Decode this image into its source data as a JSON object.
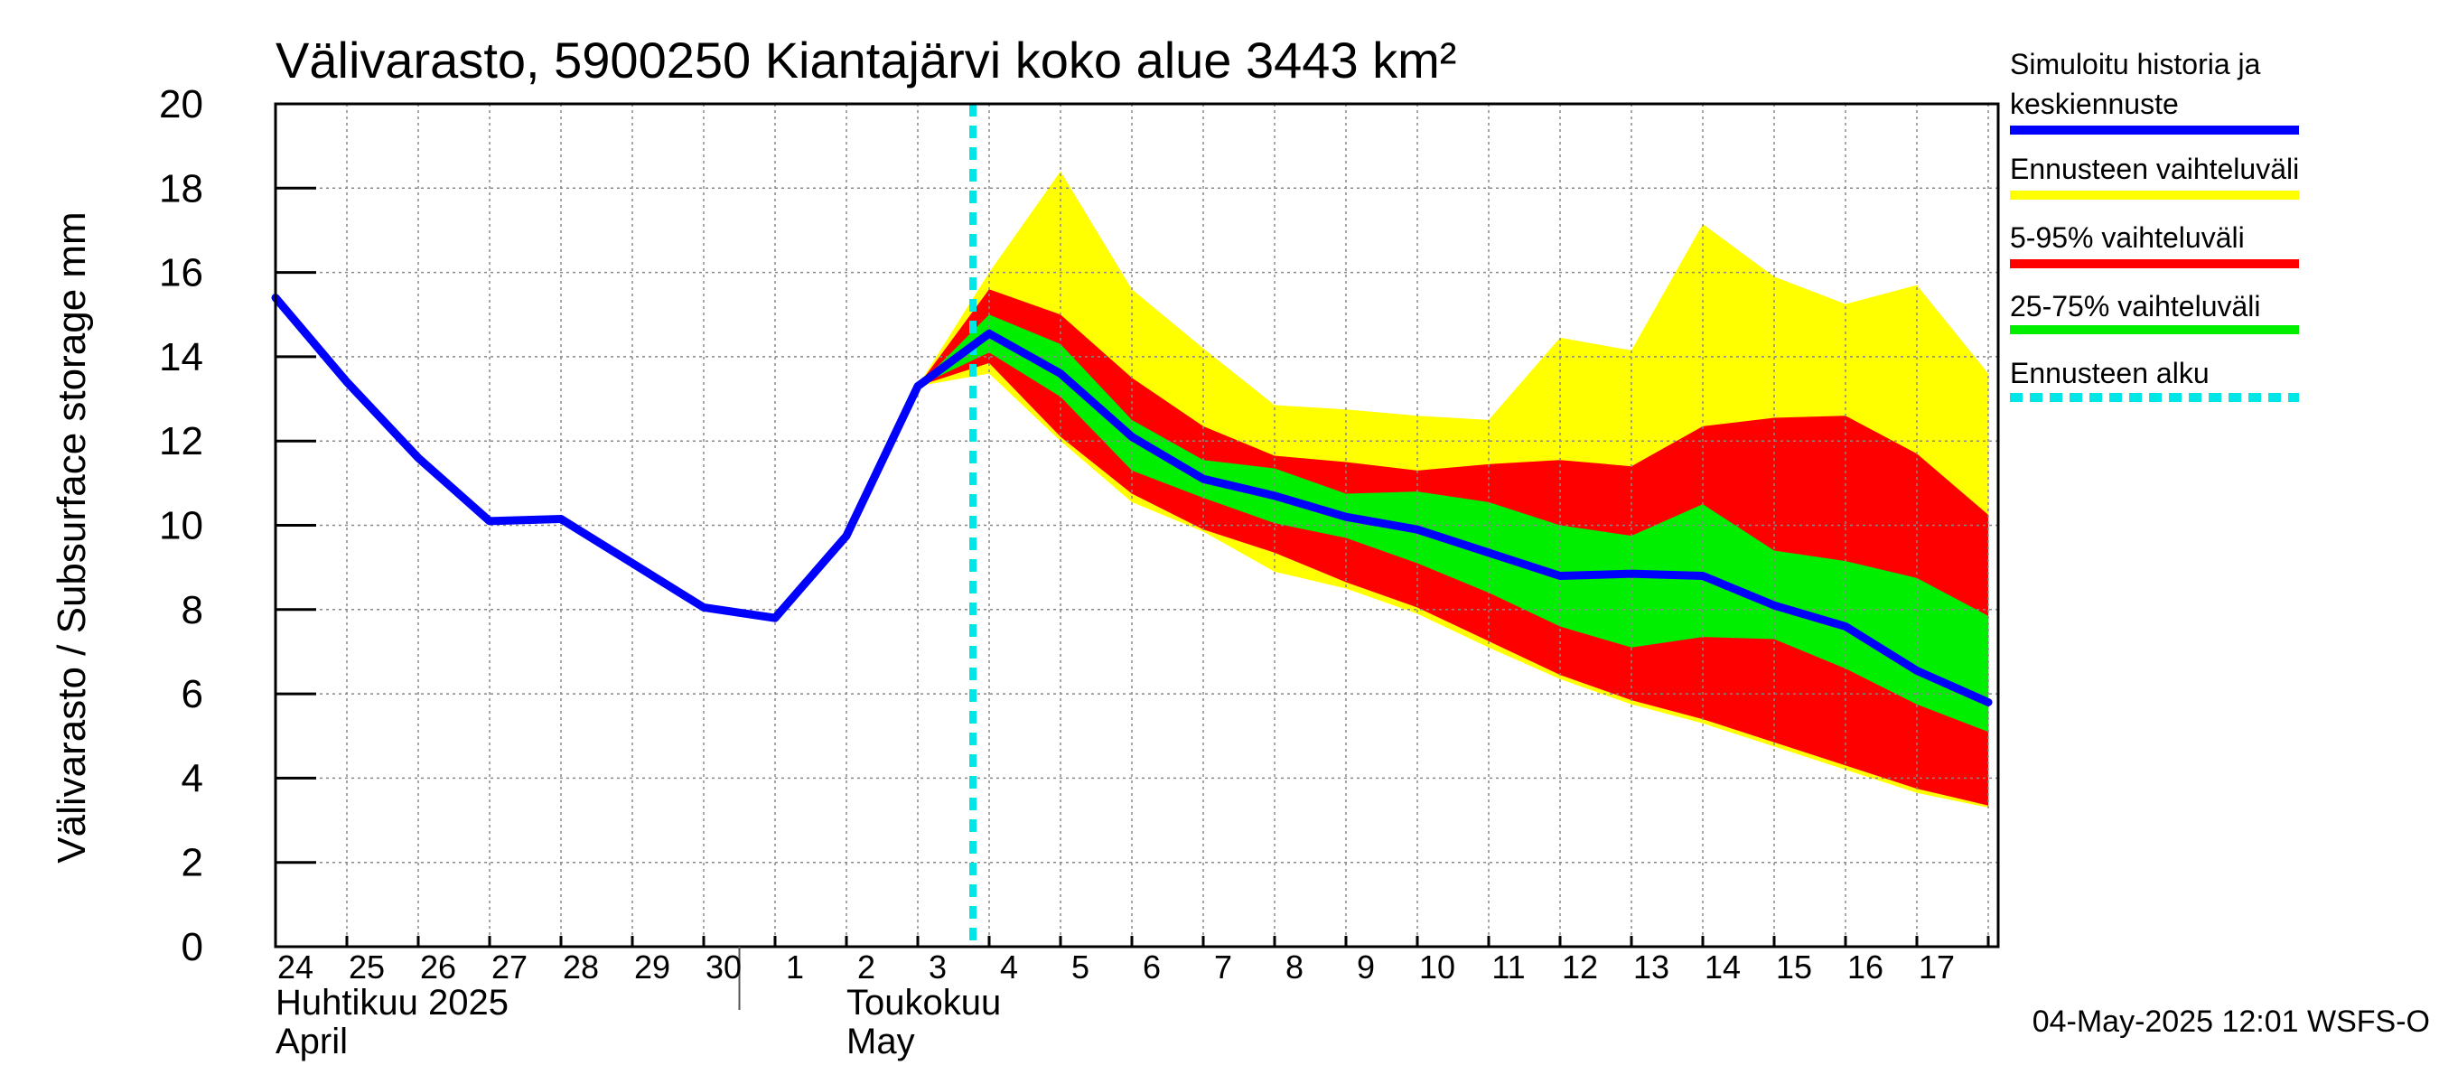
{
  "chart_data": {
    "type": "area",
    "title": "Välivarasto, 5900250 Kiantajärvi koko alue 3443 km²",
    "ylabel": "Välivarasto / Subsurface storage  mm",
    "ylim": [
      0,
      20
    ],
    "yticks": [
      "0",
      "2",
      "4",
      "6",
      "8",
      "10",
      "12",
      "14",
      "16",
      "18",
      "20"
    ],
    "grid": true,
    "x": [
      "24",
      "25",
      "26",
      "27",
      "28",
      "29",
      "30",
      "1",
      "2",
      "3",
      "4",
      "5",
      "6",
      "7",
      "8",
      "9",
      "10",
      "11",
      "12",
      "13",
      "14",
      "15",
      "16",
      "17",
      "18"
    ],
    "month_labels": [
      {
        "at": "24",
        "line1": "Huhtikuu  2025",
        "line2": "April"
      },
      {
        "at": "2",
        "line1": "Toukokuu",
        "line2": "May"
      }
    ],
    "forecast_start": "4",
    "history": {
      "name": "Simuloitu historia ja keskiennuste",
      "x": [
        "24",
        "25",
        "26",
        "27",
        "28",
        "29",
        "30",
        "1",
        "2",
        "3",
        "4",
        "5",
        "6",
        "7",
        "8",
        "9",
        "10",
        "11",
        "12",
        "13",
        "14",
        "15",
        "16",
        "17",
        "18"
      ],
      "values": [
        15.4,
        13.4,
        11.6,
        10.1,
        10.15,
        9.1,
        8.05,
        7.8,
        9.75,
        13.3,
        14.55,
        13.6,
        12.1,
        11.1,
        10.7,
        10.2,
        9.9,
        9.35,
        8.8,
        8.85,
        8.8,
        8.1,
        7.6,
        6.55,
        5.8
      ]
    },
    "bands": [
      {
        "name": "Ennusteen vaihteluväli",
        "color": "#ffff00",
        "x": [
          "3",
          "4",
          "5",
          "6",
          "7",
          "8",
          "9",
          "10",
          "11",
          "12",
          "13",
          "14",
          "15",
          "16",
          "17",
          "18"
        ],
        "upper": [
          13.3,
          16.0,
          18.4,
          15.6,
          14.2,
          12.85,
          12.75,
          12.6,
          12.5,
          14.45,
          14.15,
          17.15,
          15.9,
          15.25,
          15.7,
          13.6
        ],
        "lower": [
          13.3,
          13.6,
          12.0,
          10.55,
          9.85,
          8.9,
          8.5,
          7.9,
          7.1,
          6.35,
          5.75,
          5.3,
          4.75,
          4.2,
          3.65,
          3.3
        ]
      },
      {
        "name": "5-95% vaihteluväli",
        "color": "#ff0000",
        "x": [
          "3",
          "4",
          "5",
          "6",
          "7",
          "8",
          "9",
          "10",
          "11",
          "12",
          "13",
          "14",
          "15",
          "16",
          "17",
          "18"
        ],
        "upper": [
          13.3,
          15.6,
          15.0,
          13.5,
          12.35,
          11.65,
          11.5,
          11.3,
          11.45,
          11.55,
          11.4,
          12.35,
          12.55,
          12.6,
          11.7,
          10.25
        ],
        "lower": [
          13.3,
          13.85,
          12.1,
          10.75,
          9.9,
          9.35,
          8.65,
          8.05,
          7.25,
          6.45,
          5.85,
          5.4,
          4.85,
          4.3,
          3.75,
          3.35
        ]
      },
      {
        "name": "25-75% vaihteluväli",
        "color": "#00ee00",
        "x": [
          "3",
          "4",
          "5",
          "6",
          "7",
          "8",
          "9",
          "10",
          "11",
          "12",
          "13",
          "14",
          "15",
          "16",
          "17",
          "18"
        ],
        "upper": [
          13.3,
          15.0,
          14.3,
          12.5,
          11.55,
          11.35,
          10.75,
          10.8,
          10.55,
          10.0,
          9.75,
          10.5,
          9.4,
          9.15,
          8.75,
          7.85
        ],
        "lower": [
          13.3,
          14.1,
          13.05,
          11.3,
          10.65,
          10.05,
          9.7,
          9.1,
          8.4,
          7.6,
          7.1,
          7.35,
          7.3,
          6.6,
          5.75,
          5.1
        ]
      }
    ],
    "legend": [
      {
        "label_line1": "Simuloitu historia ja",
        "label_line2": "keskiennuste",
        "color": "#0000ff",
        "style": "solid"
      },
      {
        "label_line1": "Ennusteen vaihteluväli",
        "label_line2": "",
        "color": "#ffff00",
        "style": "solid"
      },
      {
        "label_line1": "5-95% vaihteluväli",
        "label_line2": "",
        "color": "#ff0000",
        "style": "solid"
      },
      {
        "label_line1": "25-75% vaihteluväli",
        "label_line2": "",
        "color": "#00ee00",
        "style": "solid"
      },
      {
        "label_line1": "Ennusteen alku",
        "label_line2": "",
        "color": "#00e5e5",
        "style": "dashed"
      }
    ],
    "legend_position": "right",
    "footer": "04-May-2025 12:01 WSFS-O",
    "colors": {
      "history": "#0000ff",
      "forecast_start": "#00e5e5",
      "axis": "#000000",
      "grid": "#888888"
    }
  }
}
